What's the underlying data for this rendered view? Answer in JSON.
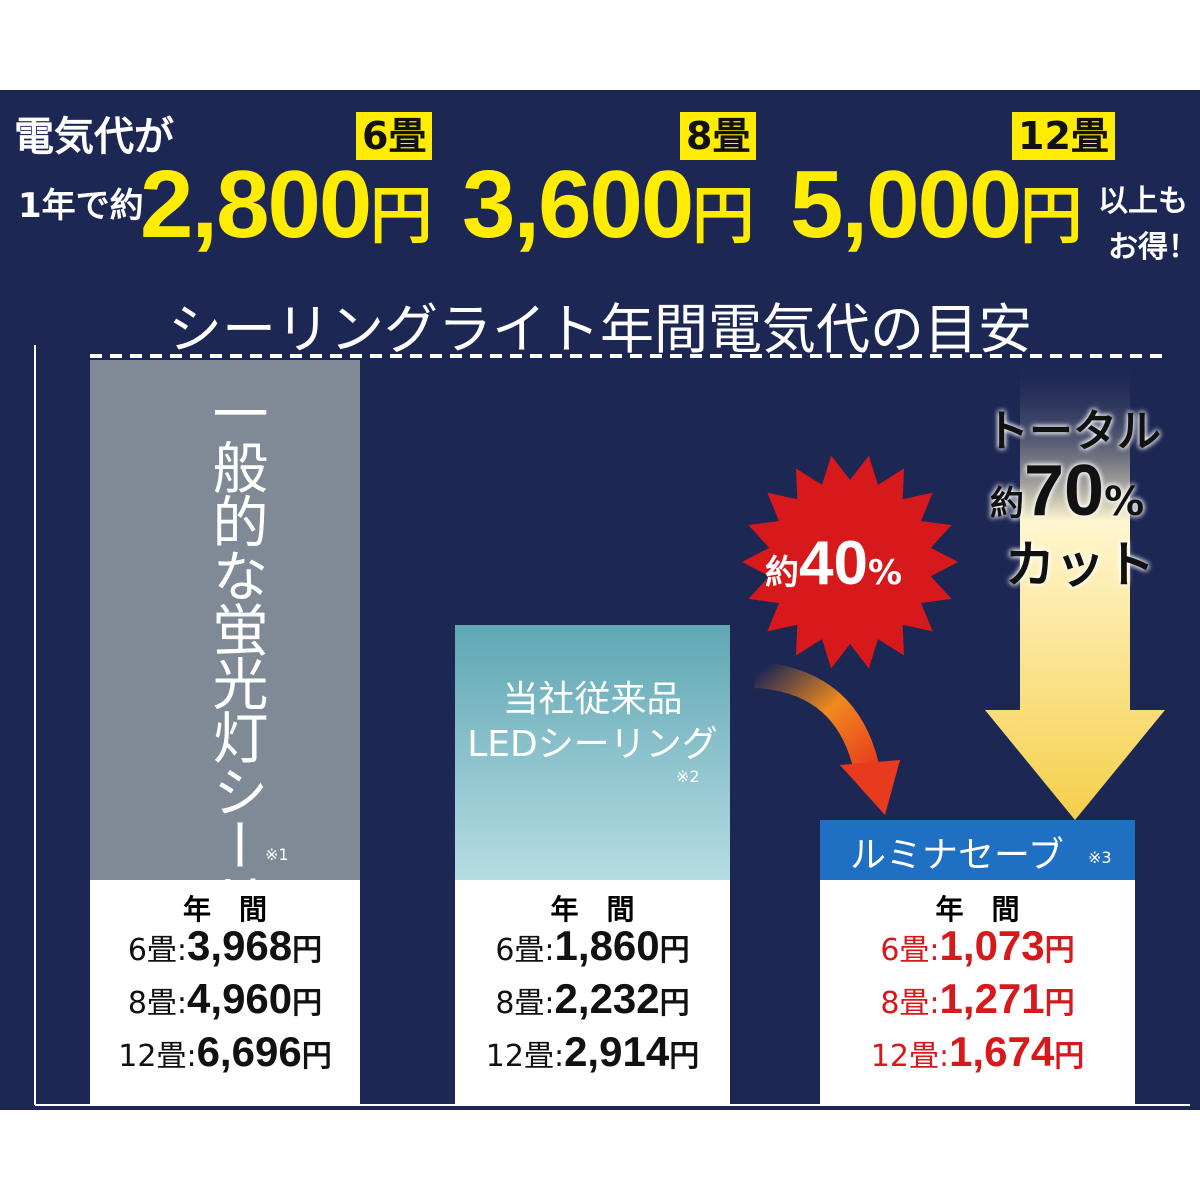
{
  "header": {
    "lead1": "電気代が",
    "lead2": "1年で約",
    "savings": [
      {
        "size": "6畳",
        "amount": "2,800",
        "unit": "円"
      },
      {
        "size": "8畳",
        "amount": "3,600",
        "unit": "円"
      },
      {
        "size": "12畳",
        "amount": "5,000",
        "unit": "円"
      }
    ],
    "tail1": "以上も",
    "tail2": "お得！"
  },
  "title": "シーリングライト年間電気代の目安",
  "bars": [
    {
      "name_lines": [
        "一般的な蛍光灯シーリング"
      ],
      "note": "※1",
      "period": "年　間",
      "rows": [
        {
          "label": "6畳:",
          "amount": "3,968",
          "unit": "円"
        },
        {
          "label": "8畳:",
          "amount": "4,960",
          "unit": "円"
        },
        {
          "label": "12畳:",
          "amount": "6,696",
          "unit": "円"
        }
      ]
    },
    {
      "name_lines": [
        "当社従来品",
        "LEDシーリング"
      ],
      "note": "※2",
      "period": "年　間",
      "rows": [
        {
          "label": "6畳:",
          "amount": "1,860",
          "unit": "円"
        },
        {
          "label": "8畳:",
          "amount": "2,232",
          "unit": "円"
        },
        {
          "label": "12畳:",
          "amount": "2,914",
          "unit": "円"
        }
      ]
    },
    {
      "name_lines": [
        "ルミナセーブ"
      ],
      "note": "※3",
      "period": "年　間",
      "rows": [
        {
          "label": "6畳:",
          "amount": "1,073",
          "unit": "円"
        },
        {
          "label": "8畳:",
          "amount": "1,271",
          "unit": "円"
        },
        {
          "label": "12畳:",
          "amount": "1,674",
          "unit": "円"
        }
      ]
    }
  ],
  "badge": {
    "prefix": "約",
    "value": "40",
    "unit": "%"
  },
  "arrow_label": {
    "line1": "トータル",
    "prefix": "約",
    "value": "70",
    "unit": "%",
    "line3": "カット"
  }
}
